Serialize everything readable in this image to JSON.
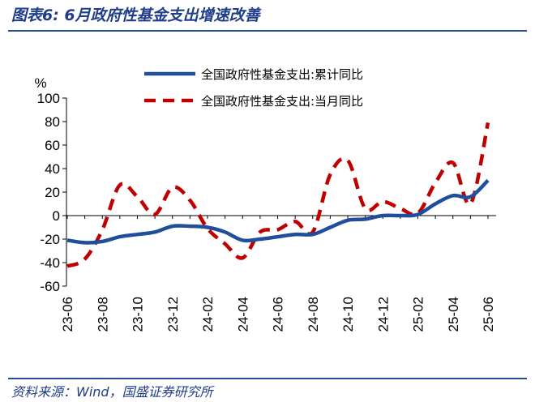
{
  "title": "图表6:  6月政府性基金支出增速改善",
  "source": "资料来源：Wind，国盛证券研究所",
  "chart_data": {
    "type": "line",
    "ylabel": "%",
    "ylim": [
      -60,
      100
    ],
    "yticks": [
      100,
      80,
      60,
      40,
      20,
      0,
      -20,
      -40,
      -60
    ],
    "x": [
      "23-06",
      "23-07",
      "23-08",
      "23-09",
      "23-10",
      "23-11",
      "23-12",
      "24-01",
      "24-02",
      "24-03",
      "24-04",
      "24-05",
      "24-06",
      "24-07",
      "24-08",
      "24-09",
      "24-10",
      "24-11",
      "24-12",
      "25-01",
      "25-02",
      "25-03",
      "25-04",
      "25-05",
      "25-06"
    ],
    "xtick_labels": [
      "23-06",
      "23-08",
      "23-10",
      "23-12",
      "24-02",
      "24-04",
      "24-06",
      "24-08",
      "24-10",
      "24-12",
      "25-02",
      "25-04",
      "25-06"
    ],
    "legend_position": "top-right",
    "series": [
      {
        "name": "全国政府性基金支出:累计同比",
        "color": "#1f4e9c",
        "style": "solid",
        "values": [
          -21,
          -23,
          -22,
          -18,
          -16,
          -14,
          -9,
          -9,
          -10,
          -14,
          -21,
          -20,
          -18,
          -16,
          -16,
          -10,
          -4,
          -3,
          0,
          0,
          1,
          10,
          17,
          16,
          30
        ]
      },
      {
        "name": "全国政府性基金支出:当月同比",
        "color": "#c00000",
        "style": "dashed",
        "values": [
          -43,
          -37,
          -12,
          26,
          16,
          1,
          24,
          13,
          -11,
          -24,
          -36,
          -14,
          -12,
          -5,
          -14,
          35,
          47,
          6,
          12,
          6,
          2,
          28,
          45,
          10,
          79
        ]
      }
    ]
  }
}
